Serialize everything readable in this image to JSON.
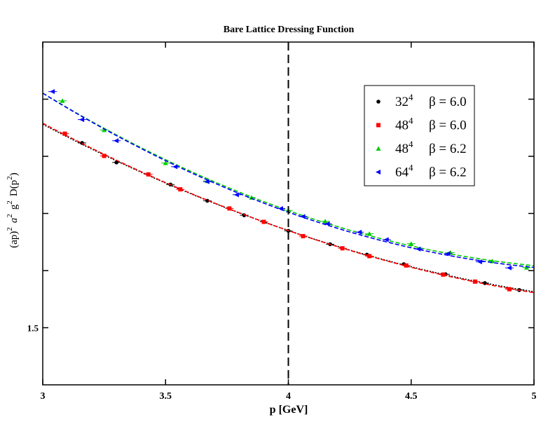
{
  "chart_data": {
    "type": "scatter",
    "title": "Bare Lattice Dressing Function",
    "xlabel": "p  [GeV]",
    "ylabel": {
      "parts": [
        "(ap)",
        "2",
        "a",
        "2",
        "g",
        "2",
        "D(p",
        "2",
        ")"
      ]
    },
    "xlim": [
      3,
      5
    ],
    "ylim": [
      1.4,
      2.0
    ],
    "x_ticks": [
      {
        "value": 3,
        "label": "3"
      },
      {
        "value": 3.5,
        "label": "3.5"
      },
      {
        "value": 4,
        "label": "4"
      },
      {
        "value": 4.5,
        "label": "4.5"
      },
      {
        "value": 5,
        "label": "5"
      }
    ],
    "y_ticks": [
      {
        "value": 1.5,
        "label": "1.5"
      },
      {
        "value": 1.6,
        "label": ""
      },
      {
        "value": 1.7,
        "label": ""
      },
      {
        "value": 1.8,
        "label": ""
      },
      {
        "value": 1.9,
        "label": ""
      }
    ],
    "vline": {
      "x": 4,
      "style": "dashed",
      "color": "#000000"
    },
    "grid": false,
    "legend_position": "top-right",
    "series": [
      {
        "name": "32",
        "exponent": "4",
        "beta": "β = 6.0",
        "color": "#000000",
        "marker": "circle",
        "line_style": "dotted",
        "x": [
          3.16,
          3.3,
          3.52,
          3.67,
          3.82,
          4.0,
          4.17,
          4.32,
          4.47,
          4.64,
          4.8,
          4.94
        ],
        "y": [
          1.8234,
          1.7893,
          1.7506,
          1.7222,
          1.6968,
          1.6696,
          1.6461,
          1.6279,
          1.6112,
          1.5936,
          1.5781,
          1.5659
        ]
      },
      {
        "name": "48",
        "exponent": "4",
        "beta": "β = 6.0",
        "color": "#ff0000",
        "marker": "square",
        "line_style": "dashed",
        "x": [
          3.09,
          3.25,
          3.43,
          3.56,
          3.76,
          3.9,
          4.06,
          4.22,
          4.33,
          4.48,
          4.63,
          4.76,
          4.9
        ],
        "y": [
          1.8396,
          1.8007,
          1.7684,
          1.7422,
          1.7087,
          1.6853,
          1.6603,
          1.639,
          1.6253,
          1.6089,
          1.593,
          1.5807,
          1.5674
        ]
      },
      {
        "name": "48",
        "exponent": "4",
        "beta": "β = 6.2",
        "color": "#00cc00",
        "marker": "triangle-up",
        "line_style": "dashed",
        "x": [
          3.08,
          3.25,
          3.5,
          3.67,
          3.85,
          4.0,
          4.15,
          4.33,
          4.5,
          4.66,
          4.83,
          4.97
        ],
        "y": [
          1.8972,
          1.8461,
          1.7883,
          1.7567,
          1.7277,
          1.7053,
          1.6862,
          1.6646,
          1.647,
          1.6314,
          1.6166,
          1.6054
        ]
      },
      {
        "name": "64",
        "exponent": "4",
        "beta": "β = 6.2",
        "color": "#0000ff",
        "marker": "triangle-left",
        "line_style": "dashed",
        "x": [
          3.04,
          3.16,
          3.3,
          3.54,
          3.67,
          3.79,
          3.97,
          4.06,
          4.16,
          4.29,
          4.4,
          4.53,
          4.65,
          4.78,
          4.9
        ],
        "y": [
          1.9133,
          1.8643,
          1.8273,
          1.7818,
          1.7557,
          1.7327,
          1.7086,
          1.6947,
          1.6819,
          1.6672,
          1.6541,
          1.6378,
          1.6296,
          1.6154,
          1.6047
        ]
      }
    ]
  }
}
